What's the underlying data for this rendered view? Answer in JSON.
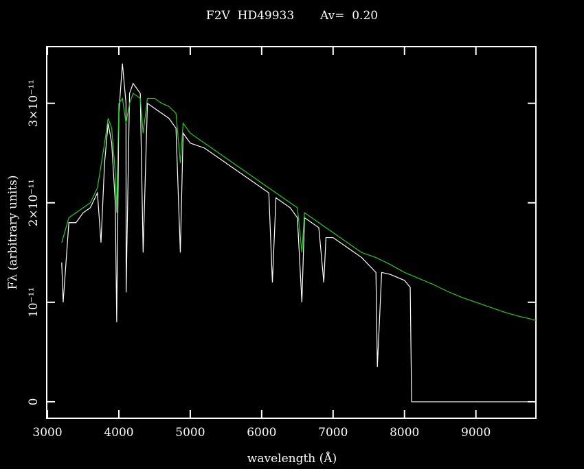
{
  "chart_data": {
    "type": "line",
    "title": "F2V  HD49933       Av=  0.20",
    "x_label": "wavelength (Å)",
    "y_label": "Fλ (arbitrary units)",
    "xlim": [
      2990,
      9840
    ],
    "ylim": [
      -1.66e-12,
      3.57e-11
    ],
    "xticks": [
      3000,
      4000,
      5000,
      6000,
      7000,
      8000,
      9000
    ],
    "yticks": [
      0,
      {
        "value": 1e-11,
        "label": "10⁻¹¹"
      },
      {
        "value": 2e-11,
        "label": "2×10⁻¹¹"
      },
      {
        "value": 3e-11,
        "label": "3×10⁻¹¹"
      }
    ],
    "grid": false,
    "series": [
      {
        "color": "#ffffff",
        "x": [
          3200,
          3220,
          3300,
          3400,
          3500,
          3600,
          3700,
          3750,
          3800,
          3850,
          3900,
          3950,
          3970,
          4000,
          4050,
          4100,
          4102,
          4150,
          4200,
          4300,
          4340,
          4400,
          4500,
          4600,
          4700,
          4800,
          4861,
          4900,
          5000,
          5200,
          5400,
          5600,
          5800,
          6000,
          6100,
          6150,
          6200,
          6400,
          6500,
          6563,
          6600,
          6800,
          6870,
          6900,
          7000,
          7200,
          7400,
          7600,
          7620,
          7680,
          7800,
          8000,
          8080,
          8100,
          9840
        ],
        "values": [
          1.4e-11,
          1e-11,
          1.8e-11,
          1.8e-11,
          1.9e-11,
          1.95e-11,
          2.1e-11,
          1.6e-11,
          2.4e-11,
          2.8e-11,
          2.6e-11,
          2e-11,
          8e-12,
          2.9e-11,
          3.4e-11,
          3e-11,
          1.1e-11,
          3.1e-11,
          3.2e-11,
          3.1e-11,
          1.5e-11,
          3e-11,
          2.95e-11,
          2.9e-11,
          2.85e-11,
          2.75e-11,
          1.5e-11,
          2.7e-11,
          2.6e-11,
          2.55e-11,
          2.45e-11,
          2.35e-11,
          2.25e-11,
          2.15e-11,
          2.1e-11,
          1.2e-11,
          2.05e-11,
          1.95e-11,
          1.85e-11,
          1e-11,
          1.85e-11,
          1.75e-11,
          1.2e-11,
          1.65e-11,
          1.65e-11,
          1.55e-11,
          1.45e-11,
          1.3e-11,
          3.5e-12,
          1.3e-11,
          1.28e-11,
          1.22e-11,
          1.15e-11,
          0,
          0
        ]
      },
      {
        "color": "#22cc22",
        "x": [
          3200,
          3300,
          3400,
          3500,
          3600,
          3700,
          3800,
          3850,
          3900,
          3950,
          3970,
          4000,
          4050,
          4100,
          4150,
          4200,
          4300,
          4340,
          4400,
          4500,
          4600,
          4700,
          4800,
          4861,
          4900,
          5000,
          5200,
          5400,
          5600,
          5800,
          6000,
          6200,
          6400,
          6500,
          6563,
          6600,
          6800,
          7000,
          7200,
          7400,
          7600,
          7800,
          8000,
          8200,
          8400,
          8600,
          8800,
          9000,
          9200,
          9400,
          9600,
          9840
        ],
        "values": [
          1.6e-11,
          1.85e-11,
          1.9e-11,
          1.95e-11,
          2e-11,
          2.15e-11,
          2.6e-11,
          2.85e-11,
          2.75e-11,
          2.3e-11,
          1.9e-11,
          3e-11,
          3.05e-11,
          2.8e-11,
          3e-11,
          3.1e-11,
          3.05e-11,
          2.7e-11,
          3.05e-11,
          3.05e-11,
          3e-11,
          2.97e-11,
          2.9e-11,
          2.4e-11,
          2.8e-11,
          2.7e-11,
          2.6e-11,
          2.5e-11,
          2.4e-11,
          2.3e-11,
          2.2e-11,
          2.1e-11,
          2e-11,
          1.95e-11,
          1.5e-11,
          1.9e-11,
          1.8e-11,
          1.7e-11,
          1.6e-11,
          1.5e-11,
          1.45e-11,
          1.38e-11,
          1.3e-11,
          1.24e-11,
          1.18e-11,
          1.11e-11,
          1.05e-11,
          1e-11,
          9.5e-12,
          9e-12,
          8.6e-12,
          8.2e-12
        ]
      }
    ]
  }
}
